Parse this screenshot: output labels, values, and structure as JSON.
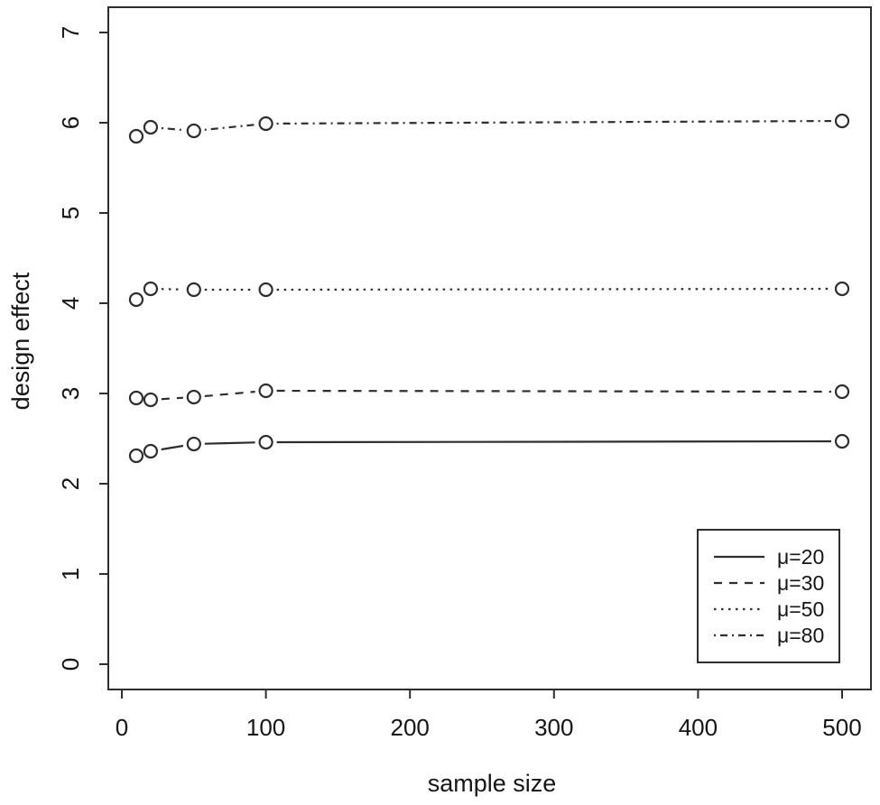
{
  "figure": {
    "background": "#ffffff",
    "line_color": "#2e2e2e",
    "axis_color": "#2e2e2e",
    "text_color": "#151515"
  },
  "chart_data": {
    "type": "line",
    "title": "",
    "xlabel": "sample size",
    "ylabel": "design effect",
    "x": [
      10,
      20,
      50,
      100,
      500
    ],
    "series": [
      {
        "name": "μ=20",
        "linestyle": "solid",
        "values": [
          2.31,
          2.36,
          2.44,
          2.46,
          2.47
        ]
      },
      {
        "name": "μ=30",
        "linestyle": "dashed",
        "values": [
          2.95,
          2.93,
          2.96,
          3.03,
          3.02
        ]
      },
      {
        "name": "μ=50",
        "linestyle": "dotted",
        "values": [
          4.04,
          4.16,
          4.15,
          4.15,
          4.16
        ]
      },
      {
        "name": "μ=80",
        "linestyle": "dashdot",
        "values": [
          5.85,
          5.95,
          5.91,
          5.99,
          6.02
        ]
      }
    ],
    "marker": "open-circle",
    "xlim": [
      0,
      500
    ],
    "ylim": [
      0,
      7
    ],
    "x_ticks": [
      0,
      100,
      200,
      300,
      400,
      500
    ],
    "y_ticks": [
      0,
      1,
      2,
      3,
      4,
      5,
      6,
      7
    ],
    "grid": false,
    "legend_position": "bottom-right",
    "legend_entries": [
      "μ=20",
      "μ=30",
      "μ=50",
      "μ=80"
    ]
  }
}
